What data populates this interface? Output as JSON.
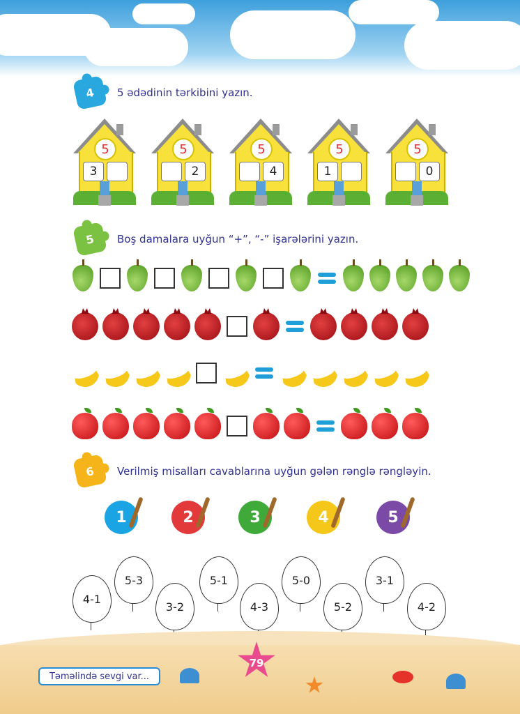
{
  "tasks": [
    {
      "number": "4",
      "text": "5 ədədinin tərkibini yazın.",
      "color": "#29a8e0"
    },
    {
      "number": "5",
      "text": "Boş damalara uyğun  “+”, “-” işarələrini yazın.",
      "color": "#7cc242"
    },
    {
      "number": "6",
      "text": "Verilmiş misalları cavablarına uyğun gələn rənglə rəngləyin.",
      "color": "#f5b51a"
    }
  ],
  "houses": [
    {
      "top": "5",
      "left": "3",
      "right": ""
    },
    {
      "top": "5",
      "left": "",
      "right": "2"
    },
    {
      "top": "5",
      "left": "",
      "right": "4"
    },
    {
      "top": "5",
      "left": "1",
      "right": ""
    },
    {
      "top": "5",
      "left": "",
      "right": "0"
    }
  ],
  "paints": [
    {
      "number": "1",
      "color": "#1ba4e3"
    },
    {
      "number": "2",
      "color": "#e23a3a"
    },
    {
      "number": "3",
      "color": "#3faa3a"
    },
    {
      "number": "4",
      "color": "#f5c71a"
    },
    {
      "number": "5",
      "color": "#7b4aa6"
    }
  ],
  "balloons": [
    "4-1",
    "5-3",
    "3-2",
    "5-1",
    "4-3",
    "5-0",
    "5-2",
    "3-1",
    "4-2"
  ],
  "footer": {
    "motto": "Təməlində sevgi var...",
    "page_number": "79"
  }
}
